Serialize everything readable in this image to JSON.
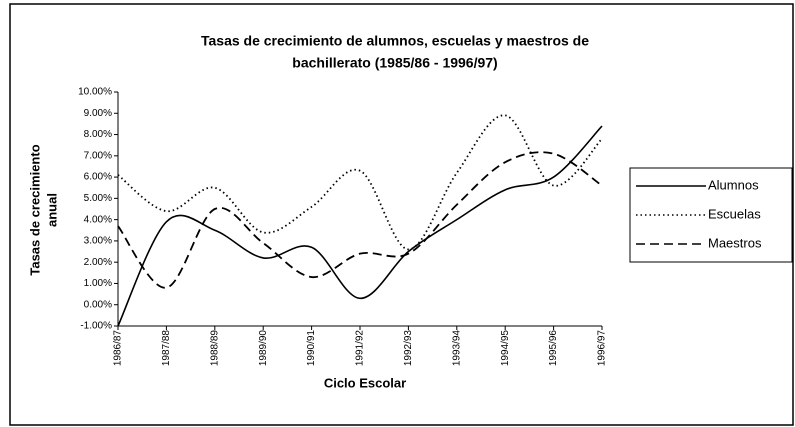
{
  "chart_data": {
    "type": "line",
    "title": [
      "Tasas de crecimiento de alumnos, escuelas y maestros de",
      "bachillerato (1985/86 - 1996/97)"
    ],
    "x_label": "Ciclo Escolar",
    "y_label": [
      "Tasas de crecimiento",
      "anual"
    ],
    "categories": [
      "1986/87",
      "1987/88",
      "1988/89",
      "1989/90",
      "1990/91",
      "1991/92",
      "1992/93",
      "1993/94",
      "1994/95",
      "1995/96",
      "1996/97"
    ],
    "series": [
      {
        "name": "Alumnos",
        "color": "#000000",
        "dash": "none",
        "values": [
          -1.0,
          3.9,
          3.5,
          2.2,
          2.7,
          0.3,
          2.5,
          4.0,
          5.4,
          6.0,
          8.4
        ]
      },
      {
        "name": "Escuelas",
        "color": "#000000",
        "dash": "1.5 3",
        "values": [
          6.1,
          4.4,
          5.5,
          3.4,
          4.6,
          6.3,
          2.6,
          6.2,
          8.9,
          5.6,
          7.8
        ]
      },
      {
        "name": "Maestros",
        "color": "#000000",
        "dash": "9 5",
        "values": [
          3.7,
          0.8,
          4.5,
          2.9,
          1.3,
          2.4,
          2.4,
          4.7,
          6.7,
          7.1,
          5.6
        ]
      }
    ],
    "ylim": [
      -1,
      10
    ],
    "yticks": [
      {
        "value": -1,
        "label": "-1.00%"
      },
      {
        "value": 0,
        "label": "0.00%"
      },
      {
        "value": 1,
        "label": "1.00%"
      },
      {
        "value": 2,
        "label": "2.00%"
      },
      {
        "value": 3,
        "label": "3.00%"
      },
      {
        "value": 4,
        "label": "4.00%"
      },
      {
        "value": 5,
        "label": "5.00%"
      },
      {
        "value": 6,
        "label": "6.00%"
      },
      {
        "value": 7,
        "label": "7.00%"
      },
      {
        "value": 8,
        "label": "8.00%"
      },
      {
        "value": 9,
        "label": "9.00%"
      },
      {
        "value": 10,
        "label": "10.00%"
      }
    ],
    "legend": "right"
  }
}
